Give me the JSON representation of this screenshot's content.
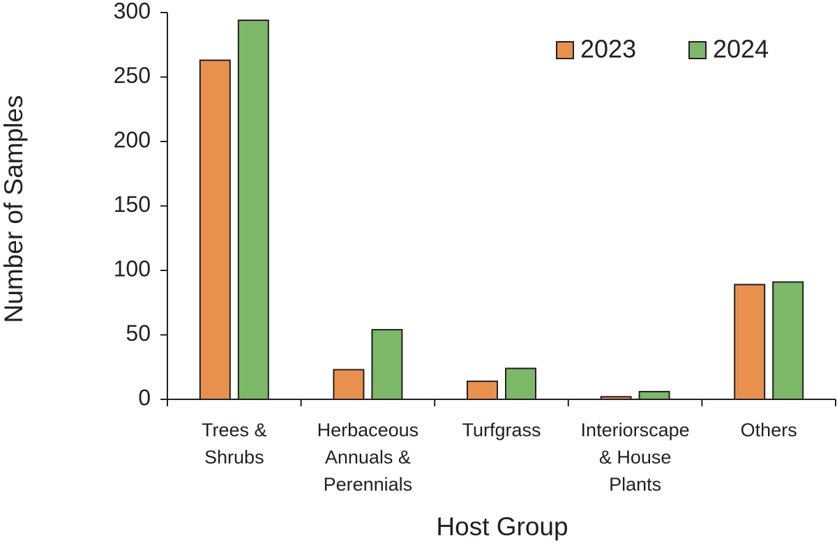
{
  "chart_data": {
    "type": "bar",
    "x_label": "Host Group",
    "y_label": "Number of Samples",
    "categories": [
      "Trees &\nShrubs",
      "Herbaceous\nAnnuals &\nPerennials",
      "Turfgrass",
      "Interiorscape\n& House\nPlants",
      "Others"
    ],
    "series": [
      {
        "name": "2023",
        "color": "#e8914f",
        "values": [
          263,
          23,
          14,
          2,
          89
        ]
      },
      {
        "name": "2024",
        "color": "#7cb868",
        "values": [
          294,
          54,
          24,
          6,
          91
        ]
      }
    ],
    "ylim": [
      0,
      300
    ],
    "yticks": [
      0,
      50,
      100,
      150,
      200,
      250,
      300
    ],
    "legend": "top-right"
  }
}
